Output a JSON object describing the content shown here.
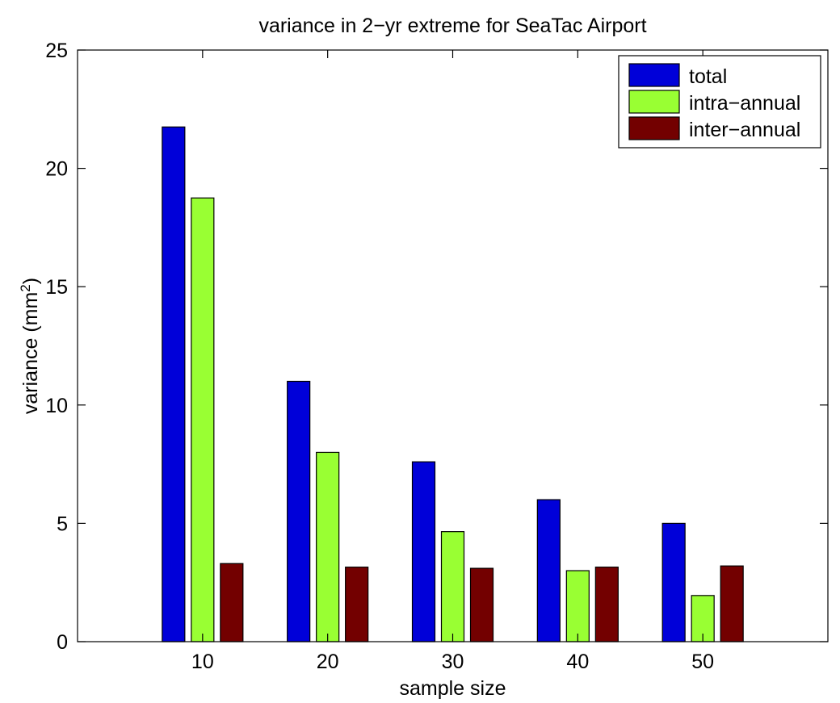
{
  "chart_data": {
    "type": "bar",
    "title": "variance in 2−yr extreme for SeaTac Airport",
    "xlabel": "sample size",
    "ylabel": "variance (mm",
    "ylabel_superscript": "2",
    "ylabel_suffix": ")",
    "categories": [
      "10",
      "20",
      "30",
      "40",
      "50"
    ],
    "series": [
      {
        "name": "total",
        "color": "#0000d9",
        "values": [
          21.75,
          11.0,
          7.6,
          6.0,
          5.0
        ]
      },
      {
        "name": "intra−annual",
        "color": "#99ff33",
        "values": [
          18.75,
          8.0,
          4.65,
          3.0,
          1.95
        ]
      },
      {
        "name": "inter−annual",
        "color": "#730000",
        "values": [
          3.3,
          3.15,
          3.1,
          3.15,
          3.2
        ]
      }
    ],
    "ylim": [
      0,
      25
    ],
    "yticks": [
      0,
      5,
      10,
      15,
      20,
      25
    ],
    "grid": false,
    "legend_position": "top-right"
  }
}
